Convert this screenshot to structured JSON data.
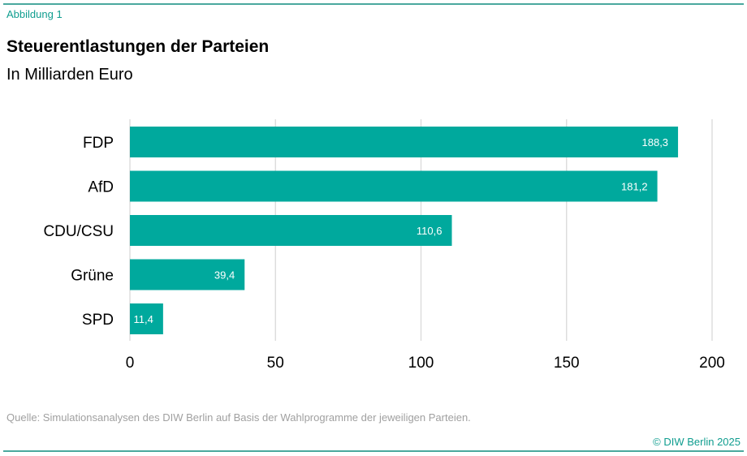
{
  "figure_label": "Abbildung 1",
  "title": "Steuerentlastungen der Parteien",
  "subtitle": "In Milliarden Euro",
  "source": "Quelle: Simulationsanalysen des DIW Berlin auf Basis der Wahlprogramme der jeweiligen Parteien.",
  "copyright": "© DIW Berlin 2025",
  "colors": {
    "bar": "#00a99d",
    "grid": "#d9d9d9",
    "accent": "#0f9d8f"
  },
  "chart_data": {
    "type": "bar",
    "orientation": "horizontal",
    "categories": [
      "FDP",
      "AfD",
      "CDU/CSU",
      "Grüne",
      "SPD"
    ],
    "values": [
      188.3,
      181.2,
      110.6,
      39.4,
      11.4
    ],
    "value_labels": [
      "188,3",
      "181,2",
      "110,6",
      "39,4",
      "11,4"
    ],
    "xlim": [
      0,
      200
    ],
    "x_ticks": [
      0,
      50,
      100,
      150,
      200
    ],
    "x_tick_labels": [
      "0",
      "50",
      "100",
      "150",
      "200"
    ],
    "grid": true
  }
}
